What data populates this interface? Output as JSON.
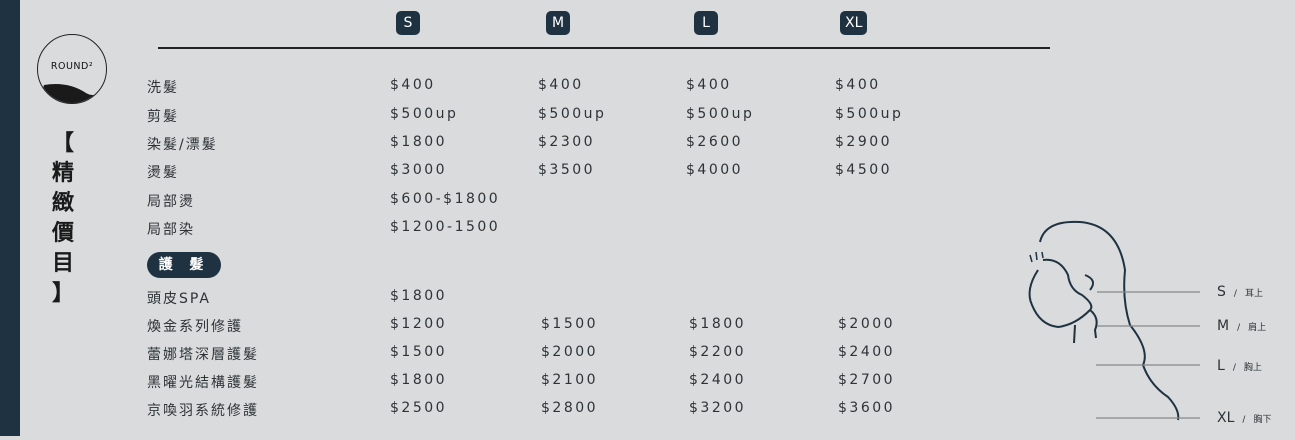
{
  "logo": {
    "text": "ROUND²"
  },
  "side_title": [
    "【",
    "精",
    "緻",
    "價",
    "目",
    "】"
  ],
  "sizes": [
    "S",
    "M",
    "L",
    "XL"
  ],
  "rows": [
    {
      "name": "洗髮",
      "prices": [
        "$400",
        "$400",
        "$400",
        "$400"
      ]
    },
    {
      "name": "剪髮",
      "prices": [
        "$500up",
        "$500up",
        "$500up",
        "$500up"
      ]
    },
    {
      "name": "染髮/漂髮",
      "prices": [
        "$1800",
        "$2300",
        "$2600",
        "$2900"
      ]
    },
    {
      "name": "燙髮",
      "prices": [
        "$3000",
        "$3500",
        "$4000",
        "$4500"
      ]
    },
    {
      "name": "局部燙",
      "prices": [
        "$600-$1800"
      ]
    },
    {
      "name": "局部染",
      "prices": [
        "$1200-1500"
      ]
    }
  ],
  "care_section": {
    "label": "護 髮"
  },
  "care_rows": [
    {
      "name": "頭皮SPA",
      "prices": [
        "$1800"
      ]
    },
    {
      "name": "煥金系列修護",
      "prices": [
        "$1200",
        "$1500",
        "$1800",
        "$2000"
      ]
    },
    {
      "name": "蕾娜塔深層護髮",
      "prices": [
        "$1500",
        "$2000",
        "$2200",
        "$2400"
      ]
    },
    {
      "name": "黑曜光結構護髮",
      "prices": [
        "$1800",
        "$2100",
        "$2400",
        "$2700"
      ]
    },
    {
      "name": "京喚羽系統修護",
      "prices": [
        "$2500",
        "$2800",
        "$3200",
        "$3600"
      ]
    }
  ],
  "length_guide": [
    {
      "size": "S",
      "sep": "/",
      "desc": "耳上"
    },
    {
      "size": "M",
      "sep": "/",
      "desc": "肩上"
    },
    {
      "size": "L",
      "sep": "/",
      "desc": "胸上"
    },
    {
      "size": "XL",
      "sep": "/",
      "desc": "胸下"
    }
  ]
}
